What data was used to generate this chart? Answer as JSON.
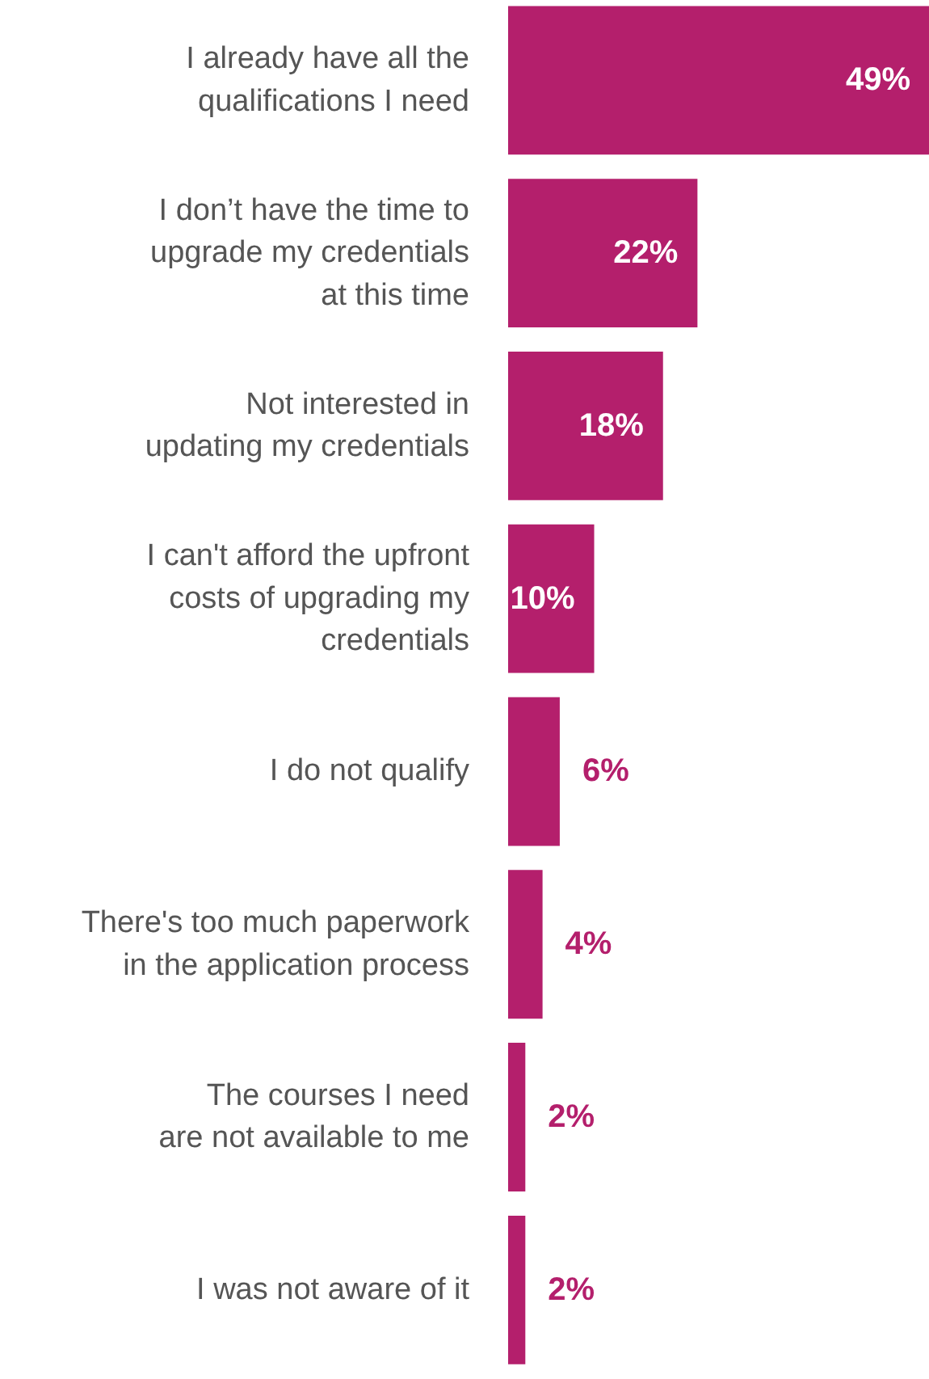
{
  "chart_data": {
    "type": "bar",
    "orientation": "horizontal",
    "categories": [
      "I already have all the\nqualifications I need",
      "I don’t have the time to\nupgrade my credentials\nat this time",
      "Not interested in\nupdating my credentials",
      "I can't afford the upfront\ncosts of upgrading my\ncredentials",
      "I do not qualify",
      "There's too much paperwork\nin the application process",
      "The courses I need\nare not available to me",
      "I was not aware of it"
    ],
    "values": [
      49,
      22,
      18,
      10,
      6,
      4,
      2,
      2
    ],
    "value_labels": [
      "49%",
      "22%",
      "18%",
      "10%",
      "6%",
      "4%",
      "2%",
      "2%"
    ],
    "color": "#b41f6c"
  }
}
